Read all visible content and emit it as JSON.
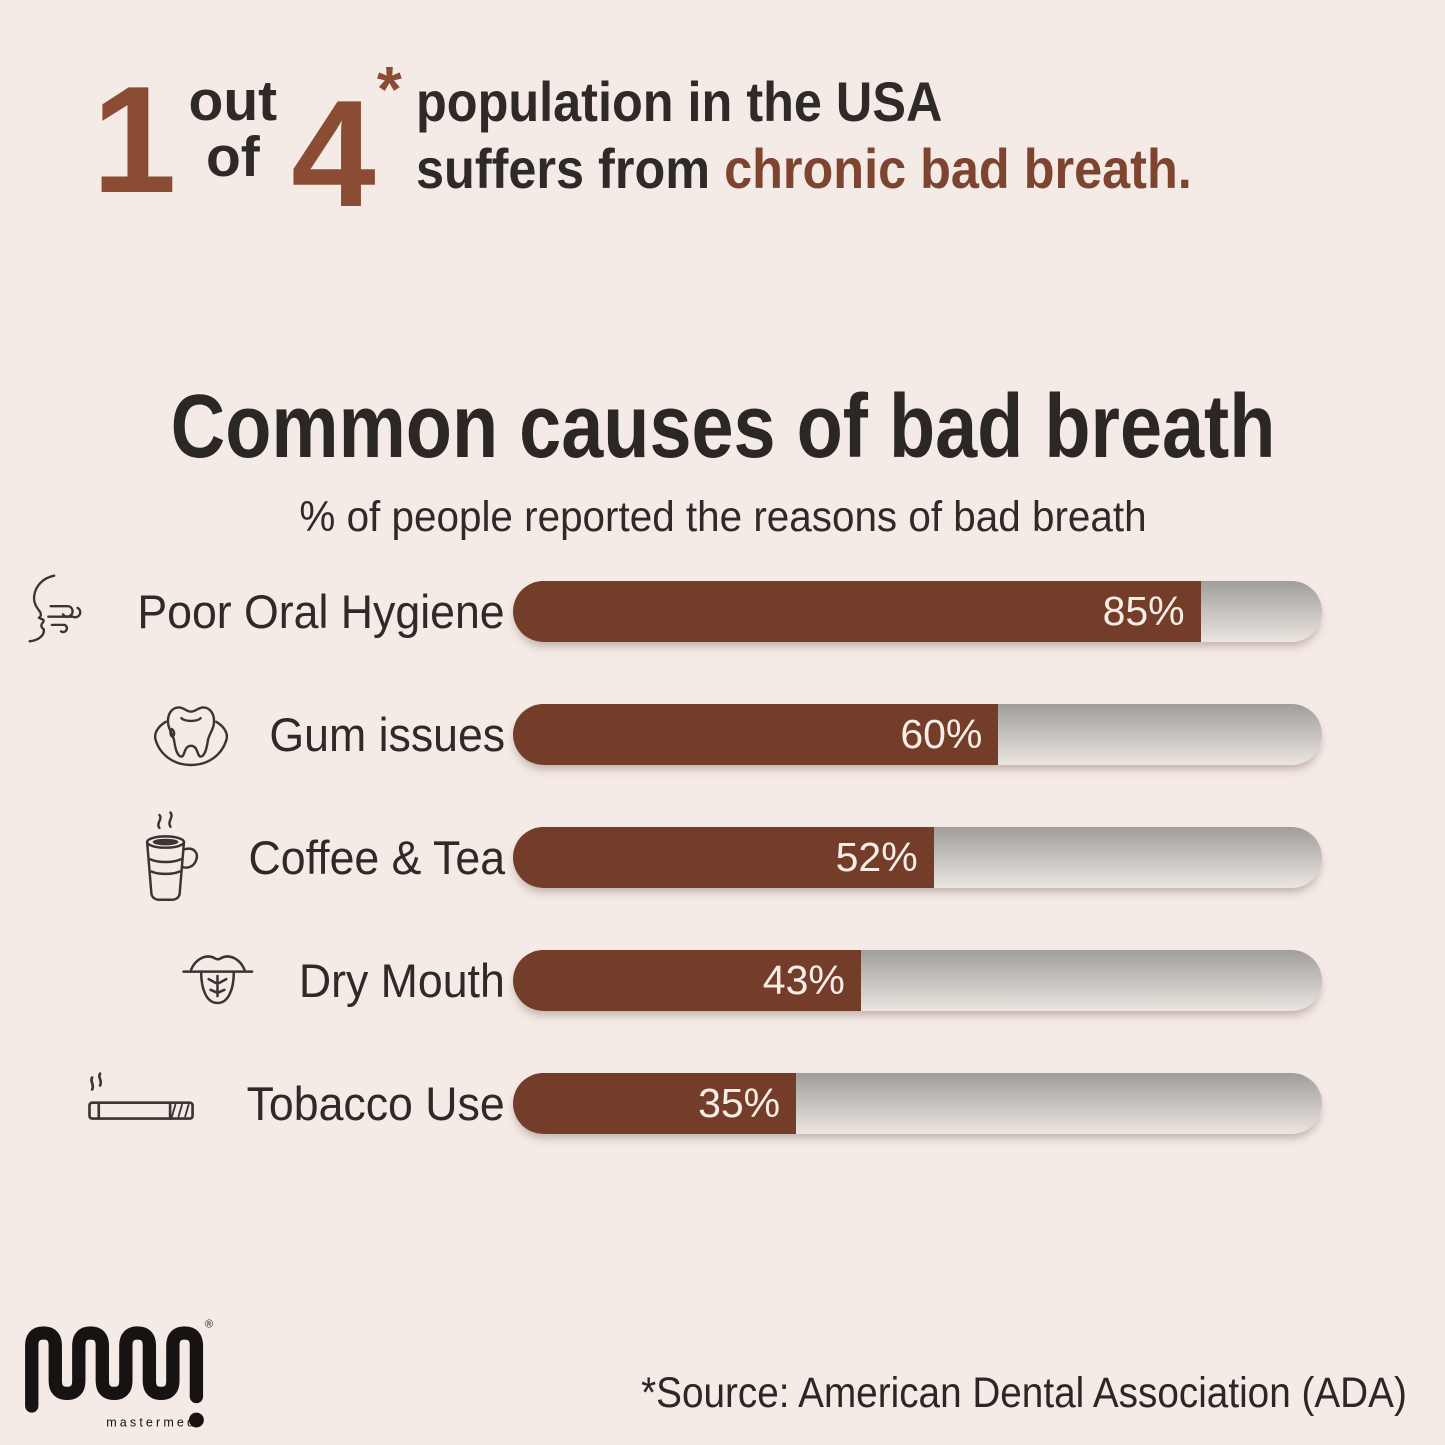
{
  "colors": {
    "background": "#f4eae6",
    "bar_brown": "#733d2a",
    "accent_brown": "#8a4c32",
    "highlight_brown": "#7d4430",
    "text_dark": "#2e2a28",
    "percent_text": "#f6ede7",
    "track_gray_top": "#a19d9b",
    "track_gray_mid": "#c2bebb",
    "track_gray_bottom": "#ece5e0"
  },
  "header": {
    "numerator": "1",
    "out_label": "out",
    "of_label": "of",
    "denominator": "4",
    "asterisk": "*",
    "line1": "population in the USA",
    "line2_prefix": "suffers from ",
    "line2_highlight": "chronic bad breath."
  },
  "chart": {
    "title": "Common causes of bad breath",
    "subtitle": "% of people reported the reasons of bad breath",
    "rows": [
      {
        "label": "Poor Oral Hygiene",
        "value": 85,
        "display": "85%",
        "icon": "breath-face-icon"
      },
      {
        "label": "Gum issues",
        "value": 60,
        "display": "60%",
        "icon": "tooth-gum-icon"
      },
      {
        "label": "Coffee & Tea",
        "value": 52,
        "display": "52%",
        "icon": "coffee-cup-icon"
      },
      {
        "label": "Dry Mouth",
        "value": 43,
        "display": "43%",
        "icon": "dry-tongue-icon"
      },
      {
        "label": "Tobacco Use",
        "value": 35,
        "display": "35%",
        "icon": "cigarette-icon"
      }
    ]
  },
  "chart_data": {
    "type": "bar",
    "orientation": "horizontal",
    "title": "Common causes of bad breath",
    "subtitle": "% of people reported the reasons of bad breath",
    "categories": [
      "Poor Oral Hygiene",
      "Gum issues",
      "Coffee & Tea",
      "Dry Mouth",
      "Tobacco Use"
    ],
    "values": [
      85,
      60,
      52,
      43,
      35
    ],
    "data_labels": [
      "85%",
      "60%",
      "52%",
      "43%",
      "35%"
    ],
    "unit": "%",
    "xlim": [
      0,
      100
    ],
    "grid": false,
    "legend": false,
    "bar_color": "#733d2a",
    "track_color": "silver-gradient"
  },
  "footer": {
    "logo_text": "mastermedi",
    "registered_mark": "®",
    "source": "*Source: American Dental Association (ADA)"
  }
}
